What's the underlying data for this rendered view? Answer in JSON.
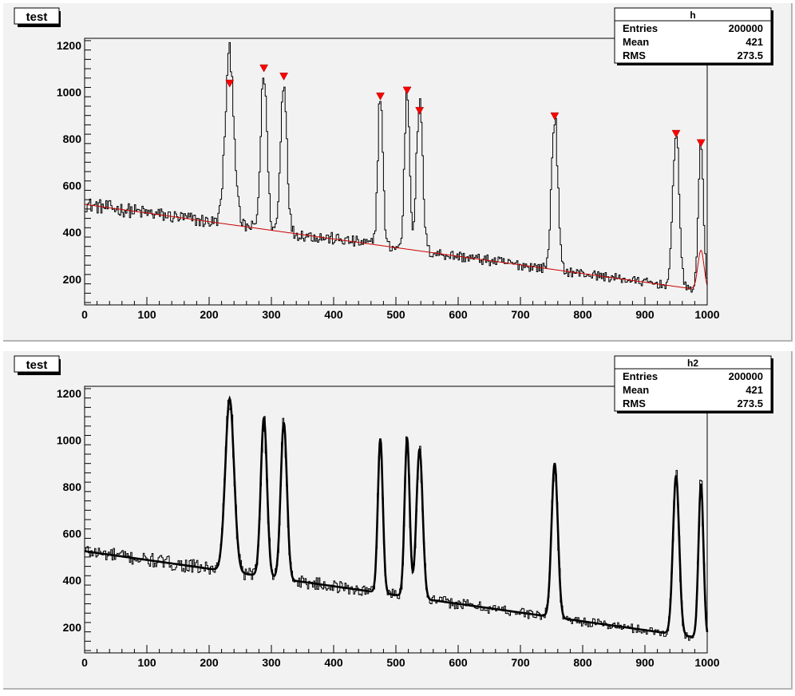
{
  "pads": [
    {
      "title": "test",
      "stats": {
        "name": "h",
        "rows": [
          {
            "label": "Entries",
            "value": "200000"
          },
          {
            "label": "Mean",
            "value": "421"
          },
          {
            "label": "RMS",
            "value": "273.5"
          }
        ]
      }
    },
    {
      "title": "test",
      "stats": {
        "name": "h2",
        "rows": [
          {
            "label": "Entries",
            "value": "200000"
          },
          {
            "label": "Mean",
            "value": "421"
          },
          {
            "label": "RMS",
            "value": "273.5"
          }
        ]
      }
    }
  ],
  "colors": {
    "pad_fill": "#f2f2f2",
    "frame": "#000000",
    "histogram": "#000000",
    "background_fit": "#cc0000",
    "marker": "#ff0000"
  },
  "chart_data": [
    {
      "type": "line",
      "xlim": [
        0,
        1000
      ],
      "ylim": [
        90,
        1230
      ],
      "xticks": [
        "0",
        "100",
        "200",
        "300",
        "400",
        "500",
        "600",
        "700",
        "800",
        "900",
        "1000"
      ],
      "yticks": [
        "200",
        "400",
        "600",
        "800",
        "1000",
        "1200"
      ],
      "background": {
        "start": 520,
        "end": 150,
        "tail_peak": {
          "x": 990,
          "height": 170,
          "sigma": 5
        }
      },
      "peaks": [
        {
          "x": 233,
          "height": 730,
          "sigma": 7
        },
        {
          "x": 288,
          "height": 670,
          "sigma": 5
        },
        {
          "x": 320,
          "height": 650,
          "sigma": 5
        },
        {
          "x": 475,
          "height": 650,
          "sigma": 4
        },
        {
          "x": 518,
          "height": 690,
          "sigma": 4
        },
        {
          "x": 538,
          "height": 630,
          "sigma": 5
        },
        {
          "x": 755,
          "height": 660,
          "sigma": 5
        },
        {
          "x": 950,
          "height": 680,
          "sigma": 5
        },
        {
          "x": 990,
          "height": 650,
          "sigma": 4
        }
      ],
      "markers": [
        {
          "x": 233,
          "y": 1035
        },
        {
          "x": 288,
          "y": 1100
        },
        {
          "x": 320,
          "y": 1065
        },
        {
          "x": 475,
          "y": 980
        },
        {
          "x": 518,
          "y": 1005
        },
        {
          "x": 538,
          "y": 918
        },
        {
          "x": 755,
          "y": 895
        },
        {
          "x": 950,
          "y": 820
        },
        {
          "x": 990,
          "y": 780
        }
      ]
    },
    {
      "type": "line",
      "xlim": [
        0,
        1000
      ],
      "ylim": [
        90,
        1230
      ],
      "xticks": [
        "0",
        "100",
        "200",
        "300",
        "400",
        "500",
        "600",
        "700",
        "800",
        "900",
        "1000"
      ],
      "yticks": [
        "200",
        "400",
        "600",
        "800",
        "1000",
        "1200"
      ],
      "background": {
        "start": 525,
        "end": 150
      },
      "peaks": [
        {
          "x": 233,
          "height": 740,
          "sigma": 7
        },
        {
          "x": 288,
          "height": 680,
          "sigma": 5
        },
        {
          "x": 320,
          "height": 670,
          "sigma": 5
        },
        {
          "x": 475,
          "height": 660,
          "sigma": 4
        },
        {
          "x": 518,
          "height": 680,
          "sigma": 4
        },
        {
          "x": 538,
          "height": 640,
          "sigma": 5
        },
        {
          "x": 755,
          "height": 660,
          "sigma": 5
        },
        {
          "x": 950,
          "height": 680,
          "sigma": 5
        },
        {
          "x": 990,
          "height": 660,
          "sigma": 4
        }
      ]
    }
  ]
}
